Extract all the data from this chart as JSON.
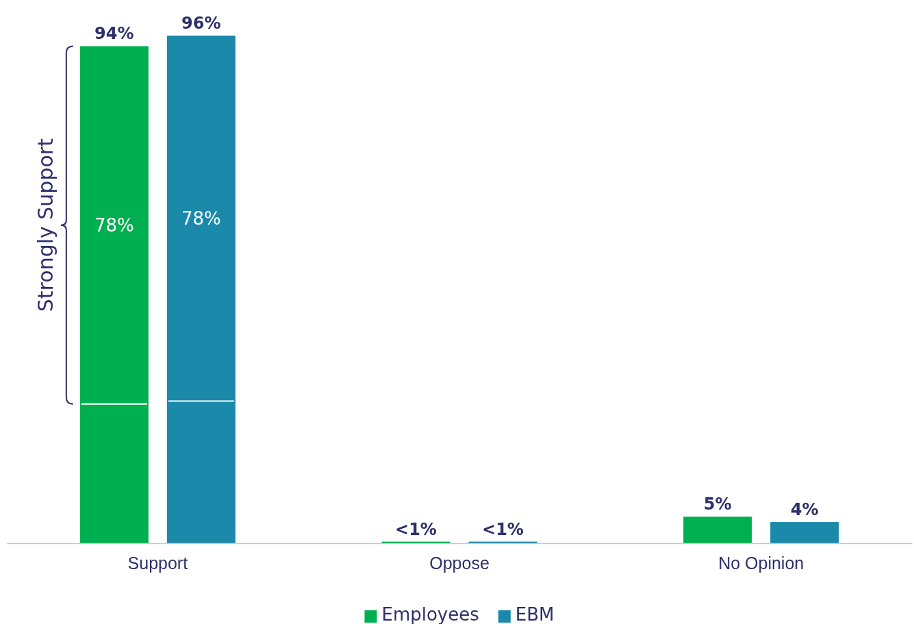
{
  "chart_data": {
    "type": "bar",
    "categories": [
      "Support",
      "Oppose",
      "No Opinion"
    ],
    "series": [
      {
        "name": "Employees",
        "color": "#00b050",
        "values": [
          94,
          0.3,
          5
        ],
        "value_labels": [
          "94%",
          "<1%",
          "5%"
        ]
      },
      {
        "name": "EBM",
        "color": "#1a89aa",
        "values": [
          96,
          0.3,
          4
        ],
        "value_labels": [
          "96%",
          "<1%",
          "4%"
        ]
      }
    ],
    "tick_labels": "x",
    "legend": "bottom",
    "annotations": [
      "Strongly Support",
      "78%",
      "78%"
    ]
  }
}
